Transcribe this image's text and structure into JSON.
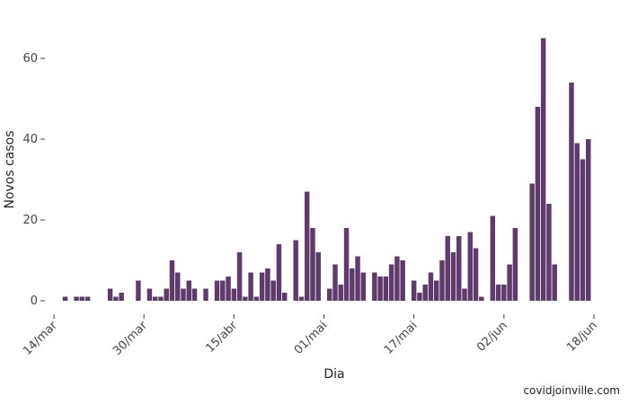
{
  "chart_data": {
    "type": "bar",
    "xlabel": "Dia",
    "ylabel": "Novos casos",
    "ylim": [
      0,
      70
    ],
    "y_ticks": [
      0,
      20,
      40,
      60
    ],
    "grid": false,
    "bar_color": "#5e3b6b",
    "x_start": "2020-03-14",
    "x_end": "2020-06-18",
    "x_ticks": [
      {
        "date": "2020-03-14",
        "label": "14/mar"
      },
      {
        "date": "2020-03-30",
        "label": "30/mar"
      },
      {
        "date": "2020-04-15",
        "label": "15/abr"
      },
      {
        "date": "2020-05-01",
        "label": "01/mai"
      },
      {
        "date": "2020-05-17",
        "label": "17/mai"
      },
      {
        "date": "2020-06-02",
        "label": "02/jun"
      },
      {
        "date": "2020-06-18",
        "label": "18/jun"
      }
    ],
    "first_date": "2020-03-16",
    "values": [
      1,
      0,
      1,
      1,
      1,
      0,
      0,
      0,
      3,
      1,
      2,
      0,
      0,
      5,
      0,
      3,
      1,
      1,
      3,
      10,
      7,
      3,
      5,
      3,
      0,
      3,
      0,
      5,
      5,
      6,
      3,
      12,
      1,
      7,
      1,
      7,
      8,
      5,
      14,
      2,
      0,
      15,
      1,
      27,
      18,
      12,
      0,
      3,
      9,
      4,
      18,
      8,
      11,
      7,
      0,
      7,
      6,
      6,
      9,
      11,
      10,
      0,
      5,
      2,
      4,
      7,
      5,
      10,
      16,
      12,
      16,
      3,
      17,
      13,
      1,
      0,
      21,
      4,
      4,
      9,
      18,
      0,
      0,
      29,
      48,
      65,
      24,
      9,
      0,
      0,
      54,
      39,
      35,
      40
    ]
  },
  "credit": "covidjoinville.com"
}
